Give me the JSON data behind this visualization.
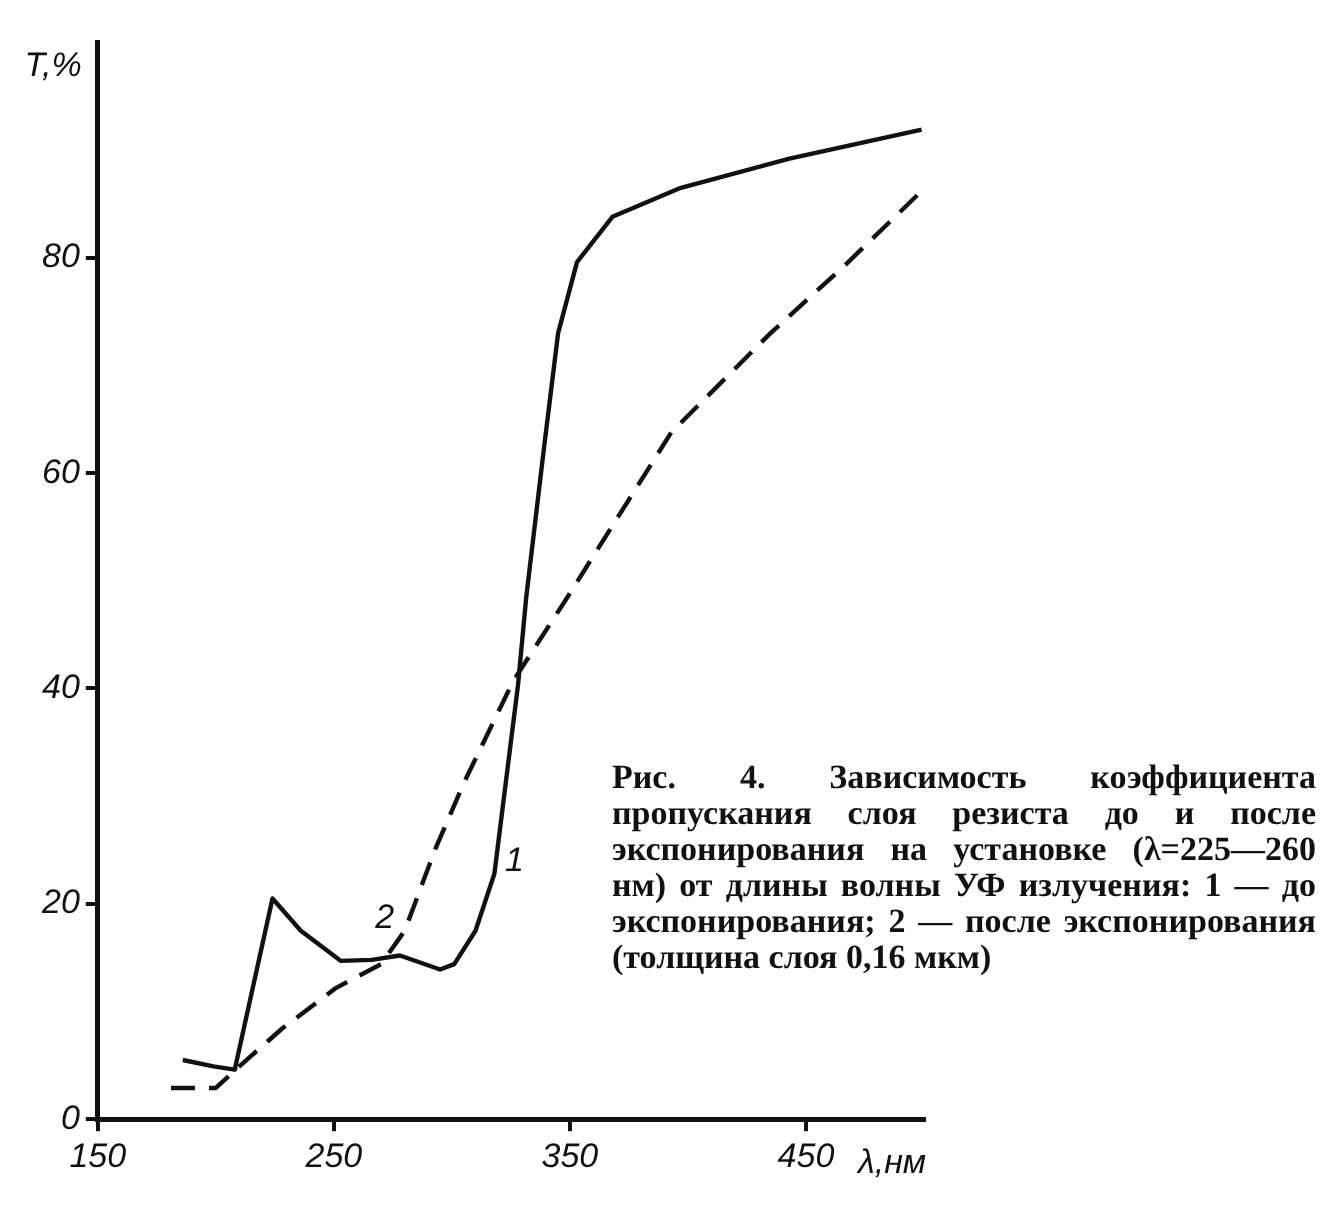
{
  "chart_data": {
    "type": "line",
    "xlabel": "λ,нм",
    "ylabel": "T,%",
    "xlim": [
      150,
      500
    ],
    "ylim": [
      0,
      100
    ],
    "xticks": [
      150,
      250,
      350,
      450
    ],
    "yticks": [
      0,
      20,
      40,
      60,
      80
    ],
    "grid": false,
    "legend": false,
    "marker": "none",
    "series": [
      {
        "name": "1",
        "color": "#111111",
        "line_style": "solid",
        "x": [
          186,
          199,
          208,
          224,
          236,
          253,
          266,
          278,
          295,
          301,
          310,
          318,
          328,
          331.5,
          339,
          345,
          353,
          368,
          397,
          443,
          499
        ],
        "values": [
          5.5,
          4.9,
          4.6,
          20.5,
          17.5,
          14.7,
          14.8,
          15.2,
          13.9,
          14.4,
          17.5,
          22.8,
          40.3,
          48.5,
          62.3,
          73,
          79.6,
          83.8,
          86.5,
          89.2,
          91.9
        ]
      },
      {
        "name": "2",
        "color": "#111111",
        "line_style": "dashed",
        "x": [
          181,
          200,
          212,
          228,
          251,
          270,
          280,
          293,
          305,
          326,
          349,
          393,
          435,
          466,
          499
        ],
        "values": [
          2.9,
          2.9,
          5.3,
          8.4,
          12.2,
          14.4,
          17.5,
          25.1,
          31.2,
          40.7,
          48.5,
          63.8,
          73,
          79.2,
          86.2
        ]
      }
    ],
    "annotations": [
      "Рис. 4. Зависимость коэффициента пропускания слоя резиста до и после экспонирования на установке (λ=225—260 нм) от длины волны УФ излучения: 1 — до экспонирования; 2 — после экспонирования (толщина слоя 0,16 мкм)"
    ]
  }
}
